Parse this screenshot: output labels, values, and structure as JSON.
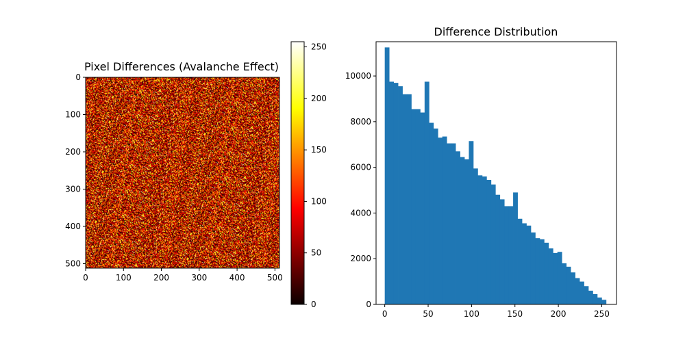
{
  "chart_data": [
    {
      "type": "heatmap",
      "title": "Pixel Differences (Avalanche Effect)",
      "colormap": "hot",
      "dimensions": [
        512,
        512
      ],
      "value_range": [
        0,
        255
      ],
      "distribution": "random noise, values concentrated in low-mid range (dark red/orange)",
      "xlim": [
        0,
        512
      ],
      "ylim": [
        512,
        0
      ],
      "xticks": [
        0,
        100,
        200,
        300,
        400,
        500
      ],
      "yticks": [
        0,
        100,
        200,
        300,
        400,
        500
      ],
      "colorbar": {
        "ticks": [
          0,
          50,
          100,
          150,
          200,
          250
        ],
        "range": [
          0,
          255
        ]
      }
    },
    {
      "type": "bar",
      "title": "Difference Distribution",
      "color": "#1f77b4",
      "bins": 50,
      "bin_range": [
        0,
        255
      ],
      "values": [
        11250,
        9750,
        9700,
        9550,
        9200,
        9200,
        8550,
        8550,
        8400,
        9750,
        7950,
        7700,
        7300,
        7350,
        7050,
        7050,
        6700,
        6450,
        6350,
        7150,
        5950,
        5650,
        5600,
        5450,
        5250,
        4800,
        4600,
        4300,
        4300,
        4900,
        3750,
        3550,
        3450,
        3150,
        2900,
        2850,
        2700,
        2450,
        2250,
        2300,
        1800,
        1650,
        1400,
        1150,
        1000,
        800,
        600,
        450,
        300,
        200
      ],
      "xlim": [
        -10,
        267
      ],
      "ylim": [
        0,
        11500
      ],
      "xticks": [
        0,
        50,
        100,
        150,
        200,
        250
      ],
      "yticks": [
        0,
        2000,
        4000,
        6000,
        8000,
        10000
      ]
    }
  ]
}
